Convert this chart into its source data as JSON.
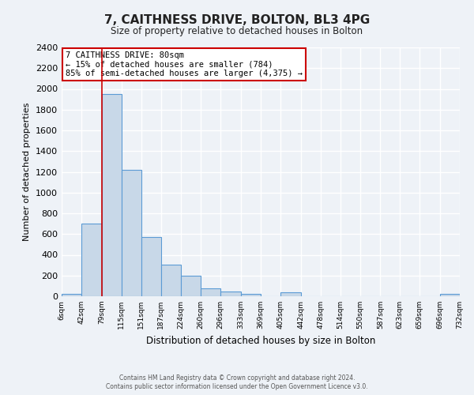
{
  "title": "7, CAITHNESS DRIVE, BOLTON, BL3 4PG",
  "subtitle": "Size of property relative to detached houses in Bolton",
  "xlabel": "Distribution of detached houses by size in Bolton",
  "ylabel": "Number of detached properties",
  "bin_edges": [
    6,
    42,
    79,
    115,
    151,
    187,
    224,
    260,
    296,
    333,
    369,
    405,
    442,
    478,
    514,
    550,
    587,
    623,
    659,
    696,
    732
  ],
  "bin_labels": [
    "6sqm",
    "42sqm",
    "79sqm",
    "115sqm",
    "151sqm",
    "187sqm",
    "224sqm",
    "260sqm",
    "296sqm",
    "333sqm",
    "369sqm",
    "405sqm",
    "442sqm",
    "478sqm",
    "514sqm",
    "550sqm",
    "587sqm",
    "623sqm",
    "659sqm",
    "696sqm",
    "732sqm"
  ],
  "bar_heights": [
    20,
    700,
    1950,
    1220,
    575,
    305,
    200,
    80,
    45,
    20,
    0,
    35,
    0,
    0,
    0,
    0,
    0,
    0,
    0,
    20
  ],
  "bar_color": "#c8d8e8",
  "bar_edge_color": "#5b9bd5",
  "ylim": [
    0,
    2400
  ],
  "yticks": [
    0,
    200,
    400,
    600,
    800,
    1000,
    1200,
    1400,
    1600,
    1800,
    2000,
    2200,
    2400
  ],
  "property_line_x": 80,
  "annotation_title": "7 CAITHNESS DRIVE: 80sqm",
  "annotation_line1": "← 15% of detached houses are smaller (784)",
  "annotation_line2": "85% of semi-detached houses are larger (4,375) →",
  "annotation_box_color": "#ffffff",
  "annotation_box_edge_color": "#cc0000",
  "red_line_color": "#cc0000",
  "footer1": "Contains HM Land Registry data © Crown copyright and database right 2024.",
  "footer2": "Contains public sector information licensed under the Open Government Licence v3.0.",
  "background_color": "#eef2f7",
  "grid_color": "#ffffff"
}
